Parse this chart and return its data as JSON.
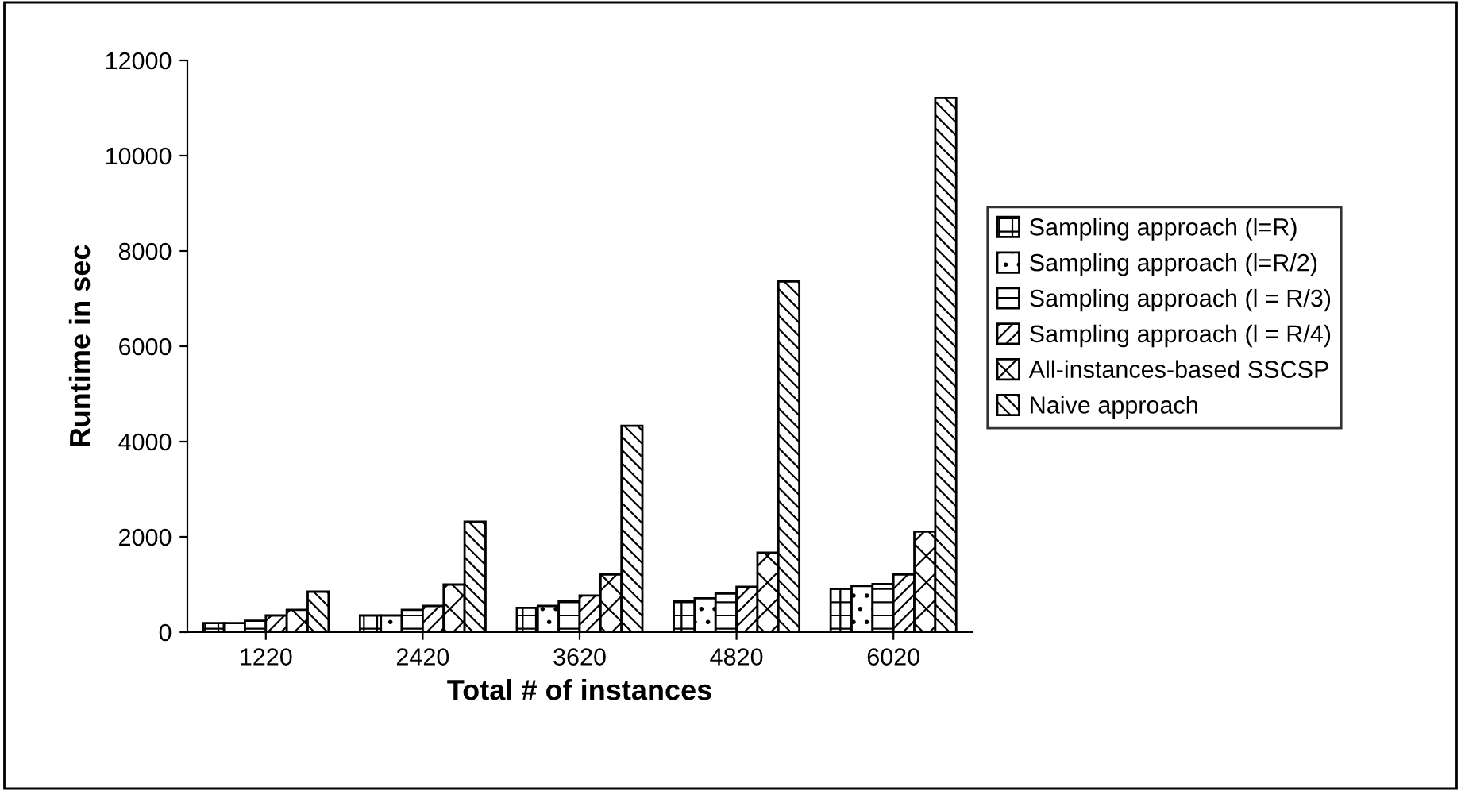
{
  "chart_data": {
    "type": "bar",
    "xlabel": "Total # of instances",
    "ylabel": "Runtime in sec",
    "categories": [
      "1220",
      "2420",
      "3620",
      "4820",
      "6020"
    ],
    "series": [
      {
        "name": "Sampling approach (l=R)",
        "color": "#000000",
        "values": [
          190,
          350,
          510,
          650,
          910
        ]
      },
      {
        "name": "Sampling approach (l=R/2)",
        "color": "#000000",
        "values": [
          190,
          350,
          550,
          710,
          970
        ]
      },
      {
        "name": "Sampling approach (l = R/3)",
        "color": "#000000",
        "values": [
          240,
          470,
          650,
          810,
          1010
        ]
      },
      {
        "name": "Sampling approach (l = R/4)",
        "color": "#000000",
        "values": [
          350,
          550,
          770,
          950,
          1210
        ]
      },
      {
        "name": "All-instances-based SSCSP",
        "color": "#000000",
        "values": [
          470,
          1000,
          1210,
          1670,
          2110
        ]
      },
      {
        "name": "Naive approach",
        "color": "#000000",
        "values": [
          850,
          2320,
          4330,
          7360,
          11210
        ]
      }
    ],
    "ylim": [
      0,
      12000
    ],
    "yticks": [
      0,
      2000,
      4000,
      6000,
      8000,
      10000,
      12000
    ],
    "grid": false,
    "legend": "right"
  }
}
